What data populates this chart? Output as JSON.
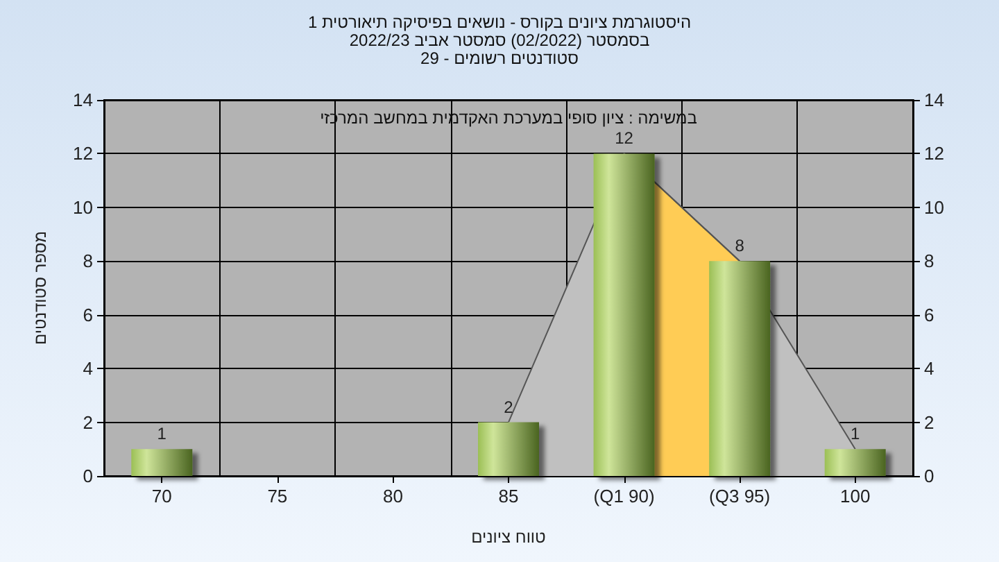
{
  "chart_data": {
    "type": "bar",
    "title": "היסטוגרמת ציונים בקורס - נושאים בפיסיקה תיאורטית 1",
    "subtitle": "בסמסטר  (02/2022)  סמסטר אביב 2022/23\nסטודנטים רשומים - 29",
    "xlabel": "טווח ציונים",
    "ylabel": "מספר סטודנטים",
    "annotations": [
      "במשימה : ציון סופי במערכת האקדמית במחשב המרכזי"
    ],
    "categories": [
      "70",
      "75",
      "80",
      "85",
      "(Q1 90)",
      "(Q3 95)",
      "100"
    ],
    "series": [
      {
        "type": "area",
        "color": "#c0c0c0",
        "values": [
          null,
          null,
          null,
          2,
          12,
          8,
          1
        ]
      },
      {
        "type": "area",
        "color": "#ffcc55",
        "values": [
          null,
          null,
          null,
          null,
          12,
          8,
          null
        ]
      },
      {
        "color": "#9bbf55",
        "values": [
          1,
          0,
          0,
          2,
          12,
          8,
          1
        ],
        "value_labels": [
          "1",
          null,
          null,
          "2",
          "12",
          "8",
          "1"
        ]
      }
    ],
    "ylim": [
      0,
      14
    ],
    "yticks": [
      0,
      2,
      4,
      6,
      8,
      10,
      12,
      14
    ],
    "y2lim": [
      0,
      14
    ],
    "y2ticks": [
      0,
      2,
      4,
      6,
      8,
      10,
      12,
      14
    ],
    "grid": true
  }
}
